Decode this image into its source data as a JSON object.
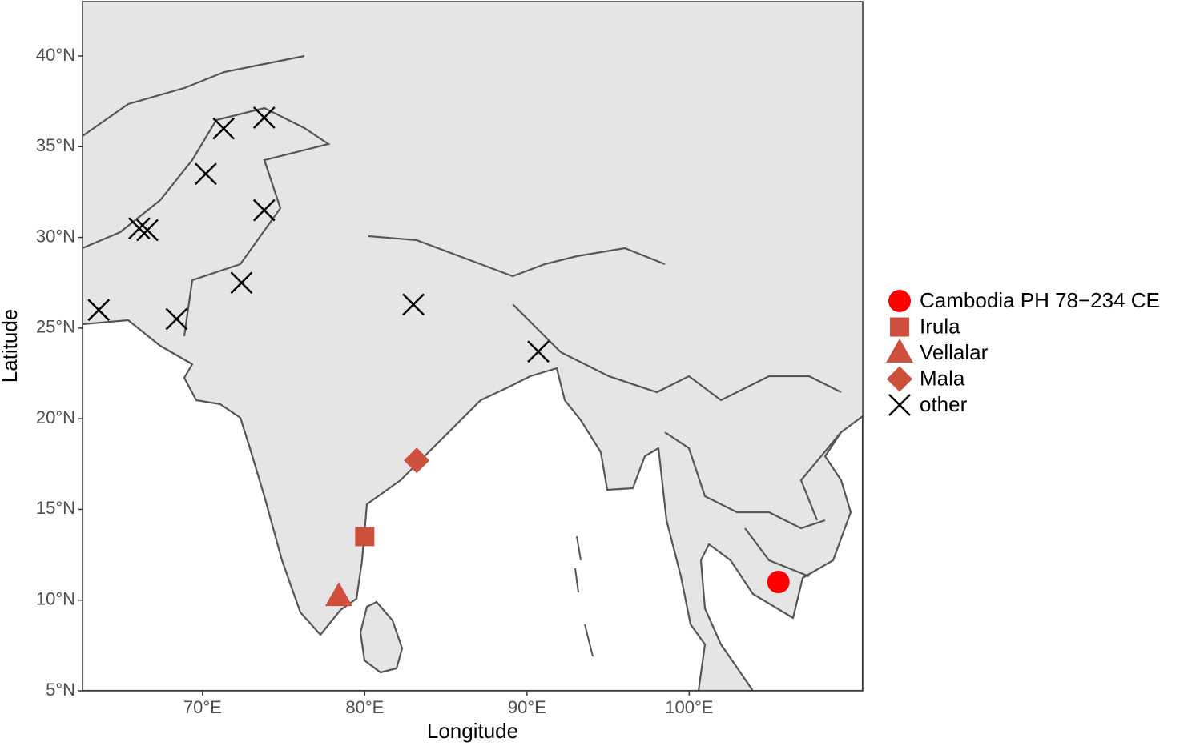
{
  "chart_data": {
    "type": "scatter",
    "x_label": "Longitude",
    "y_label": "Latitude",
    "xlim": [
      62.6,
      110.7
    ],
    "ylim": [
      5,
      43
    ],
    "xticks": [
      {
        "value": 70,
        "label": "70°E"
      },
      {
        "value": 80,
        "label": "80°E"
      },
      {
        "value": 90,
        "label": "90°E"
      },
      {
        "value": 100,
        "label": "100°E"
      }
    ],
    "yticks": [
      {
        "value": 5,
        "label": "5°N"
      },
      {
        "value": 10,
        "label": "10°N"
      },
      {
        "value": 15,
        "label": "15°N"
      },
      {
        "value": 20,
        "label": "20°N"
      },
      {
        "value": 25,
        "label": "25°N"
      },
      {
        "value": 30,
        "label": "30°N"
      },
      {
        "value": 35,
        "label": "35°N"
      },
      {
        "value": 40,
        "label": "40°N"
      }
    ],
    "legend": "right",
    "series": [
      {
        "name": "Cambodia PH 78−234 CE",
        "color": "#ff0000",
        "shape": "circle",
        "x": [
          105.5
        ],
        "y": [
          11.0
        ]
      },
      {
        "name": "Irula",
        "color": "#cd4f3c",
        "shape": "square",
        "x": [
          80.0
        ],
        "y": [
          13.5
        ]
      },
      {
        "name": "Vellalar",
        "color": "#cd4f3c",
        "shape": "triangle",
        "x": [
          78.4
        ],
        "y": [
          10.2
        ]
      },
      {
        "name": "Mala",
        "color": "#cd4f3c",
        "shape": "diamond",
        "x": [
          83.2
        ],
        "y": [
          17.7
        ]
      },
      {
        "name": "other",
        "color": "#000000",
        "shape": "cross",
        "x": [
          63.6,
          68.4,
          72.4,
          73.8,
          70.2,
          71.3,
          73.8,
          66.1,
          66.6,
          83.0,
          90.7
        ],
        "y": [
          26.0,
          25.5,
          27.5,
          31.5,
          33.5,
          36.0,
          36.6,
          30.5,
          30.4,
          26.3,
          23.7
        ]
      }
    ]
  }
}
